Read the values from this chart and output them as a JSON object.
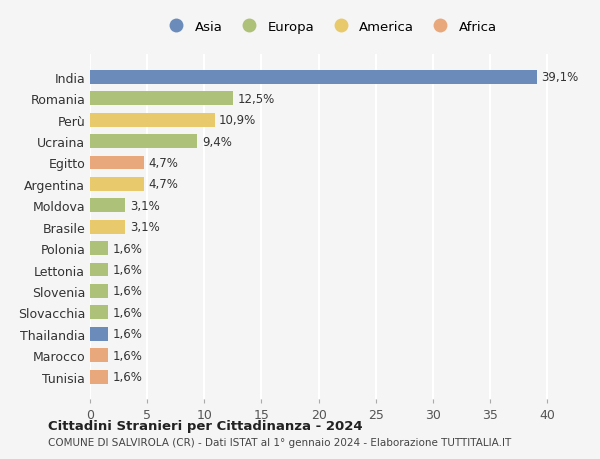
{
  "countries": [
    "India",
    "Romania",
    "Perù",
    "Ucraina",
    "Egitto",
    "Argentina",
    "Moldova",
    "Brasile",
    "Polonia",
    "Lettonia",
    "Slovenia",
    "Slovacchia",
    "Thailandia",
    "Marocco",
    "Tunisia"
  ],
  "values": [
    39.1,
    12.5,
    10.9,
    9.4,
    4.7,
    4.7,
    3.1,
    3.1,
    1.6,
    1.6,
    1.6,
    1.6,
    1.6,
    1.6,
    1.6
  ],
  "labels": [
    "39,1%",
    "12,5%",
    "10,9%",
    "9,4%",
    "4,7%",
    "4,7%",
    "3,1%",
    "3,1%",
    "1,6%",
    "1,6%",
    "1,6%",
    "1,6%",
    "1,6%",
    "1,6%",
    "1,6%"
  ],
  "continents": [
    "Asia",
    "Europa",
    "America",
    "Europa",
    "Africa",
    "America",
    "Europa",
    "America",
    "Europa",
    "Europa",
    "Europa",
    "Europa",
    "Asia",
    "Africa",
    "Africa"
  ],
  "colors": {
    "Asia": "#6b8cba",
    "Europa": "#adc178",
    "America": "#e8c96b",
    "Africa": "#e8a87c"
  },
  "legend_order": [
    "Asia",
    "Europa",
    "America",
    "Africa"
  ],
  "title": "Cittadini Stranieri per Cittadinanza - 2024",
  "subtitle": "COMUNE DI SALVIROLA (CR) - Dati ISTAT al 1° gennaio 2024 - Elaborazione TUTTITALIA.IT",
  "xlim": [
    0,
    42
  ],
  "xticks": [
    0,
    5,
    10,
    15,
    20,
    25,
    30,
    35,
    40
  ],
  "background_color": "#f5f5f5",
  "grid_color": "#ffffff"
}
